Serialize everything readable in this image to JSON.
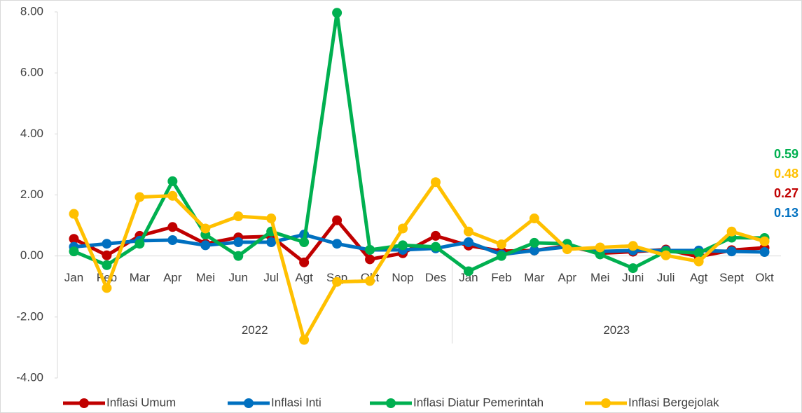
{
  "chart_data": {
    "type": "line",
    "categories": [
      "Jan",
      "Feb",
      "Mar",
      "Apr",
      "Mei",
      "Jun",
      "Jul",
      "Agt",
      "Sep",
      "Okt",
      "Nop",
      "Des",
      "Jan",
      "Feb",
      "Mar",
      "Apr",
      "Mei",
      "Juni",
      "Juli",
      "Agt",
      "Sept",
      "Okt"
    ],
    "groups": [
      "2022",
      "2023"
    ],
    "series": [
      {
        "name": "Inflasi Umum",
        "color": "#c00000",
        "values": [
          0.56,
          0.02,
          0.66,
          0.95,
          0.4,
          0.61,
          0.64,
          -0.21,
          1.17,
          -0.11,
          0.09,
          0.66,
          0.34,
          0.16,
          0.18,
          0.33,
          0.09,
          0.14,
          0.21,
          -0.02,
          0.19,
          0.27
        ]
      },
      {
        "name": "Inflasi Inti",
        "color": "#0070c0",
        "values": [
          0.3,
          0.4,
          0.5,
          0.52,
          0.35,
          0.45,
          0.45,
          0.7,
          0.4,
          0.2,
          0.2,
          0.25,
          0.45,
          0.05,
          0.18,
          0.3,
          0.15,
          0.18,
          0.18,
          0.18,
          0.15,
          0.13
        ]
      },
      {
        "name": "Inflasi Diatur Pemerintah",
        "color": "#00b050",
        "values": [
          0.15,
          -0.3,
          0.4,
          2.45,
          0.7,
          0.0,
          0.8,
          0.45,
          7.97,
          0.2,
          0.35,
          0.3,
          -0.5,
          0.0,
          0.43,
          0.4,
          0.05,
          -0.4,
          0.15,
          0.1,
          0.6,
          0.59
        ]
      },
      {
        "name": "Inflasi Bergejolak",
        "color": "#ffc000",
        "values": [
          1.38,
          -1.05,
          1.93,
          1.97,
          0.9,
          1.3,
          1.23,
          -2.75,
          -0.85,
          -0.82,
          0.9,
          2.42,
          0.8,
          0.38,
          1.23,
          0.22,
          0.28,
          0.33,
          0.02,
          -0.18,
          0.8,
          0.48
        ]
      }
    ],
    "ylim": [
      -4,
      8
    ],
    "yticks": [
      {
        "value": -4,
        "label": "-4.00"
      },
      {
        "value": -2,
        "label": "-2.00"
      },
      {
        "value": 0,
        "label": "0.00"
      },
      {
        "value": 2,
        "label": "2.00"
      },
      {
        "value": 4,
        "label": "4.00"
      },
      {
        "value": 6,
        "label": "6.00"
      },
      {
        "value": 8,
        "label": "8.00"
      }
    ],
    "grid": false,
    "legend": "bottom"
  }
}
